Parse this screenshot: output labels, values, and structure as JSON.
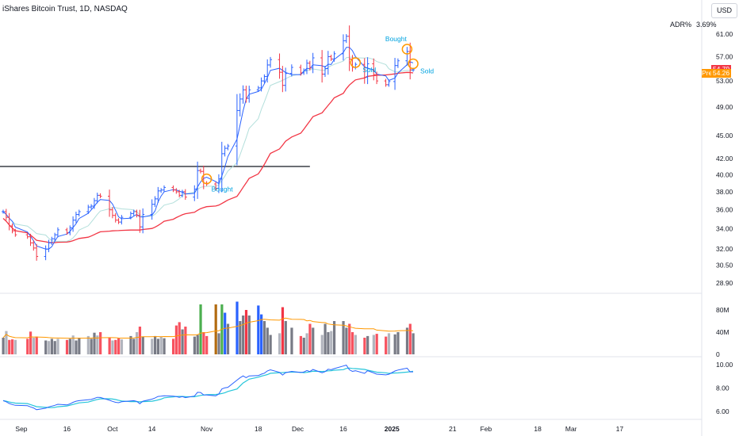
{
  "header": {
    "title": "iShares Bitcoin Trust, 1D, NASDAQ",
    "currency_button": "USD",
    "adr_label": "ADR%",
    "adr_value": "3.69%"
  },
  "price_tags": {
    "last": "54.79",
    "last_color": "#f23645",
    "pre_label": "Pre",
    "pre": "54.26",
    "pre_color": "#ff9800"
  },
  "trade_annotations": [
    {
      "label": "Bought",
      "date": "2024-11-01",
      "price": 39.5
    },
    {
      "label": "Sold",
      "date": "2024-12-20",
      "price": 56.0
    },
    {
      "label": "Bought",
      "date": "2025-01-06",
      "price": 58.3
    },
    {
      "label": "Sold",
      "date": "2025-01-08",
      "price": 55.8
    }
  ],
  "chart_data": {
    "type": "ohlc",
    "symbol": "iShares Bitcoin Trust, 1D, NASDAQ",
    "price_scale": "log",
    "price_ticks": [
      "61.00",
      "57.00",
      "53.00",
      "49.00",
      "45.00",
      "42.00",
      "40.00",
      "38.00",
      "36.00",
      "34.00",
      "32.00",
      "30.50",
      "28.90"
    ],
    "x_ticks": [
      "Sep",
      "16",
      "Oct",
      "14",
      "Nov",
      "18",
      "Dec",
      "16",
      "2025",
      "21",
      "Feb",
      "18",
      "Mar",
      "17"
    ],
    "volume_ticks": [
      "80M",
      "40M",
      "0"
    ],
    "oscillator_ticks": [
      "10.00",
      "8.00",
      "6.00"
    ],
    "horizontal_line": {
      "price": 41.0,
      "from": "2024-08-26",
      "to": "2024-12-05"
    },
    "colors": {
      "up": "#2962ff",
      "down": "#f23645",
      "ma_fast": "#2962ff",
      "ma_mid": "#b2dfdb",
      "ma_slow": "#f23645",
      "volume_avg": "#ff9800",
      "osc_1": "#2962ff",
      "osc_2": "#26c6da"
    },
    "daily_close": [
      [
        "2024-08-26",
        35.8
      ],
      [
        "2024-08-27",
        35.2
      ],
      [
        "2024-08-28",
        34.3
      ],
      [
        "2024-08-29",
        33.8
      ],
      [
        "2024-08-30",
        33.4
      ],
      [
        "2024-09-03",
        33.2
      ],
      [
        "2024-09-04",
        32.6
      ],
      [
        "2024-09-05",
        32.1
      ],
      [
        "2024-09-06",
        31.3
      ],
      [
        "2024-09-09",
        32.0
      ],
      [
        "2024-09-10",
        32.6
      ],
      [
        "2024-09-11",
        33.0
      ],
      [
        "2024-09-12",
        33.4
      ],
      [
        "2024-09-13",
        33.9
      ],
      [
        "2024-09-16",
        33.6
      ],
      [
        "2024-09-17",
        34.1
      ],
      [
        "2024-09-18",
        34.9
      ],
      [
        "2024-09-19",
        35.5
      ],
      [
        "2024-09-20",
        35.8
      ],
      [
        "2024-09-23",
        36.3
      ],
      [
        "2024-09-24",
        36.4
      ],
      [
        "2024-09-25",
        37.0
      ],
      [
        "2024-09-26",
        37.6
      ],
      [
        "2024-09-27",
        37.5
      ],
      [
        "2024-09-30",
        36.0
      ],
      [
        "2024-10-01",
        35.4
      ],
      [
        "2024-10-02",
        34.9
      ],
      [
        "2024-10-03",
        34.7
      ],
      [
        "2024-10-04",
        35.2
      ],
      [
        "2024-10-07",
        35.6
      ],
      [
        "2024-10-08",
        35.8
      ],
      [
        "2024-10-09",
        35.4
      ],
      [
        "2024-10-10",
        34.2
      ],
      [
        "2024-10-11",
        35.5
      ],
      [
        "2024-10-14",
        36.6
      ],
      [
        "2024-10-15",
        37.2
      ],
      [
        "2024-10-16",
        38.1
      ],
      [
        "2024-10-17",
        38.2
      ],
      [
        "2024-10-18",
        38.5
      ],
      [
        "2024-10-21",
        38.2
      ],
      [
        "2024-10-22",
        38.0
      ],
      [
        "2024-10-23",
        37.6
      ],
      [
        "2024-10-24",
        38.0
      ],
      [
        "2024-10-25",
        37.4
      ],
      [
        "2024-10-28",
        38.3
      ],
      [
        "2024-10-29",
        40.5
      ],
      [
        "2024-10-30",
        40.4
      ],
      [
        "2024-10-31",
        39.0
      ],
      [
        "2024-11-01",
        38.9
      ],
      [
        "2024-11-04",
        38.4
      ],
      [
        "2024-11-05",
        39.5
      ],
      [
        "2024-11-06",
        42.6
      ],
      [
        "2024-11-07",
        43.3
      ],
      [
        "2024-11-08",
        43.6
      ],
      [
        "2024-11-11",
        48.5
      ],
      [
        "2024-11-12",
        50.2
      ],
      [
        "2024-11-13",
        51.6
      ],
      [
        "2024-11-14",
        50.3
      ],
      [
        "2024-11-15",
        51.6
      ],
      [
        "2024-11-18",
        51.9
      ],
      [
        "2024-11-19",
        53.0
      ],
      [
        "2024-11-20",
        53.7
      ],
      [
        "2024-11-21",
        55.6
      ],
      [
        "2024-11-22",
        56.5
      ],
      [
        "2024-11-25",
        54.4
      ],
      [
        "2024-11-26",
        52.3
      ],
      [
        "2024-11-27",
        54.2
      ],
      [
        "2024-11-29",
        55.2
      ],
      [
        "2024-12-02",
        54.3
      ],
      [
        "2024-12-03",
        54.7
      ],
      [
        "2024-12-04",
        55.9
      ],
      [
        "2024-12-05",
        55.1
      ],
      [
        "2024-12-06",
        56.8
      ],
      [
        "2024-12-09",
        54.1
      ],
      [
        "2024-12-10",
        55.0
      ],
      [
        "2024-12-11",
        57.0
      ],
      [
        "2024-12-12",
        56.6
      ],
      [
        "2024-12-13",
        57.5
      ],
      [
        "2024-12-16",
        59.8
      ],
      [
        "2024-12-17",
        60.6
      ],
      [
        "2024-12-18",
        56.6
      ],
      [
        "2024-12-19",
        55.2
      ],
      [
        "2024-12-20",
        55.7
      ],
      [
        "2024-12-23",
        53.6
      ],
      [
        "2024-12-24",
        55.8
      ],
      [
        "2024-12-26",
        54.0
      ],
      [
        "2024-12-27",
        53.0
      ],
      [
        "2024-12-30",
        52.4
      ],
      [
        "2024-12-31",
        52.9
      ],
      [
        "2025-01-02",
        55.5
      ],
      [
        "2025-01-03",
        56.3
      ],
      [
        "2025-01-06",
        57.9
      ],
      [
        "2025-01-07",
        54.8
      ],
      [
        "2025-01-08",
        54.8
      ]
    ],
    "daily_volume_millions": [
      [
        "2024-08-26",
        30
      ],
      [
        "2024-08-27",
        42
      ],
      [
        "2024-08-28",
        26
      ],
      [
        "2024-08-29",
        27
      ],
      [
        "2024-08-30",
        26
      ],
      [
        "2024-09-03",
        28
      ],
      [
        "2024-09-04",
        41
      ],
      [
        "2024-09-05",
        30
      ],
      [
        "2024-09-06",
        32
      ],
      [
        "2024-09-09",
        25
      ],
      [
        "2024-09-10",
        24
      ],
      [
        "2024-09-11",
        28
      ],
      [
        "2024-09-12",
        24
      ],
      [
        "2024-09-13",
        28
      ],
      [
        "2024-09-16",
        26
      ],
      [
        "2024-09-17",
        28
      ],
      [
        "2024-09-18",
        34
      ],
      [
        "2024-09-19",
        25
      ],
      [
        "2024-09-20",
        30
      ],
      [
        "2024-09-23",
        33
      ],
      [
        "2024-09-24",
        28
      ],
      [
        "2024-09-25",
        39
      ],
      [
        "2024-09-26",
        34
      ],
      [
        "2024-09-27",
        40
      ],
      [
        "2024-09-30",
        30
      ],
      [
        "2024-10-01",
        25
      ],
      [
        "2024-10-02",
        26
      ],
      [
        "2024-10-03",
        29
      ],
      [
        "2024-10-04",
        27
      ],
      [
        "2024-10-07",
        33
      ],
      [
        "2024-10-08",
        28
      ],
      [
        "2024-10-09",
        40
      ],
      [
        "2024-10-10",
        50
      ],
      [
        "2024-10-11",
        32
      ],
      [
        "2024-10-14",
        28
      ],
      [
        "2024-10-15",
        33
      ],
      [
        "2024-10-16",
        28
      ],
      [
        "2024-10-17",
        32
      ],
      [
        "2024-10-18",
        29
      ],
      [
        "2024-10-21",
        28
      ],
      [
        "2024-10-22",
        52
      ],
      [
        "2024-10-23",
        58
      ],
      [
        "2024-10-24",
        45
      ],
      [
        "2024-10-25",
        50
      ],
      [
        "2024-10-28",
        32
      ],
      [
        "2024-10-29",
        35
      ],
      [
        "2024-10-30",
        90
      ],
      [
        "2024-10-31",
        40
      ],
      [
        "2024-11-01",
        33
      ],
      [
        "2024-11-04",
        90
      ],
      [
        "2024-11-05",
        38
      ],
      [
        "2024-11-06",
        90
      ],
      [
        "2024-11-07",
        75
      ],
      [
        "2024-11-08",
        55
      ],
      [
        "2024-11-11",
        95
      ],
      [
        "2024-11-12",
        60
      ],
      [
        "2024-11-13",
        70
      ],
      [
        "2024-11-14",
        80
      ],
      [
        "2024-11-15",
        70
      ],
      [
        "2024-11-18",
        88
      ],
      [
        "2024-11-19",
        72
      ],
      [
        "2024-11-20",
        60
      ],
      [
        "2024-11-21",
        48
      ],
      [
        "2024-11-22",
        35
      ],
      [
        "2024-11-25",
        38
      ],
      [
        "2024-11-26",
        85
      ],
      [
        "2024-11-27",
        60
      ],
      [
        "2024-11-29",
        48
      ],
      [
        "2024-12-02",
        33
      ],
      [
        "2024-12-03",
        30
      ],
      [
        "2024-12-04",
        38
      ],
      [
        "2024-12-05",
        55
      ],
      [
        "2024-12-06",
        48
      ],
      [
        "2024-12-09",
        35
      ],
      [
        "2024-12-10",
        55
      ],
      [
        "2024-12-11",
        40
      ],
      [
        "2024-12-12",
        42
      ],
      [
        "2024-12-13",
        60
      ],
      [
        "2024-12-16",
        60
      ],
      [
        "2024-12-17",
        48
      ],
      [
        "2024-12-18",
        55
      ],
      [
        "2024-12-19",
        40
      ],
      [
        "2024-12-20",
        35
      ],
      [
        "2024-12-23",
        30
      ],
      [
        "2024-12-24",
        33
      ],
      [
        "2024-12-26",
        35
      ],
      [
        "2024-12-27",
        37
      ],
      [
        "2024-12-30",
        32
      ],
      [
        "2024-12-31",
        38
      ],
      [
        "2025-01-02",
        36
      ],
      [
        "2025-01-03",
        40
      ],
      [
        "2025-01-06",
        48
      ],
      [
        "2025-01-07",
        55
      ],
      [
        "2025-01-08",
        38
      ]
    ]
  }
}
